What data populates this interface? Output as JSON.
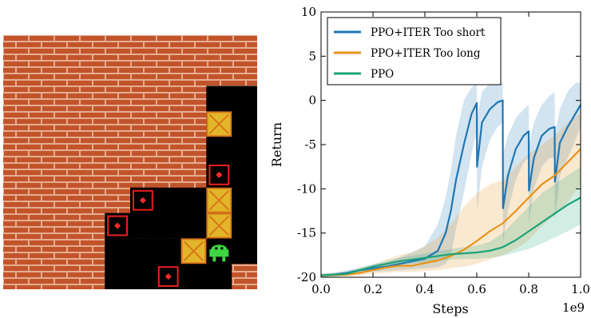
{
  "game": {
    "colors": {
      "wall_brick": "#c2542b",
      "mortar": "#e6ad90",
      "floor": "#000000",
      "box_fill": "#e2b62a",
      "box_edge": "#d9761a",
      "target_frame": "#e8201e",
      "target_dot": "#ff2a2a",
      "agent": "#3ed640"
    },
    "icons": [
      "box-icon",
      "target-icon",
      "agent-icon"
    ]
  },
  "chart_data": {
    "type": "line",
    "xlabel": "Steps",
    "ylabel": "Return",
    "xlim": [
      0.0,
      1.0
    ],
    "ylim": [
      -20,
      10
    ],
    "x_multiplier": "1e9",
    "xticks": [
      "0.0",
      "0.2",
      "0.4",
      "0.6",
      "0.8",
      "1.0"
    ],
    "yticks": [
      "-20",
      "-15",
      "-10",
      "-5",
      "0",
      "5",
      "10"
    ],
    "legend_position": "top-left",
    "grid": false,
    "series": [
      {
        "name": "PPO+ITER Too short",
        "color": "#1f77b4",
        "x": [
          0,
          0.05,
          0.1,
          0.15,
          0.2,
          0.25,
          0.3,
          0.35,
          0.4,
          0.45,
          0.48,
          0.5,
          0.52,
          0.55,
          0.58,
          0.6,
          0.601,
          0.62,
          0.65,
          0.68,
          0.7,
          0.701,
          0.72,
          0.75,
          0.78,
          0.8,
          0.801,
          0.82,
          0.85,
          0.88,
          0.9,
          0.901,
          0.92,
          0.95,
          0.98,
          1.0
        ],
        "y": [
          -19.8,
          -19.7,
          -19.5,
          -19.2,
          -19.0,
          -18.8,
          -18.5,
          -18.2,
          -17.9,
          -17.0,
          -15.0,
          -12.5,
          -9.0,
          -5.0,
          -1.5,
          -0.3,
          -7.5,
          -2.5,
          -1.0,
          -0.2,
          0.0,
          -12.2,
          -8.5,
          -5.5,
          -4.0,
          -3.5,
          -10.2,
          -6.5,
          -4.0,
          -3.2,
          -3.0,
          -9.2,
          -4.8,
          -3.0,
          -1.5,
          -0.5
        ],
        "band_upper": [
          -19.6,
          -19.5,
          -19.2,
          -18.9,
          -18.6,
          -18.3,
          -17.8,
          -17.2,
          -16.5,
          -14.0,
          -11.0,
          -8.0,
          -4.0,
          0.0,
          1.5,
          2.0,
          -2.0,
          1.0,
          2.0,
          2.0,
          2.0,
          -6.0,
          -4.0,
          -2.0,
          -1.0,
          -0.5,
          -5.0,
          -2.5,
          -0.5,
          0.5,
          1.0,
          -4.0,
          -1.0,
          1.0,
          2.0,
          2.0
        ],
        "band_lower": [
          -20.0,
          -19.9,
          -19.8,
          -19.5,
          -19.4,
          -19.3,
          -19.2,
          -19.1,
          -19.0,
          -18.9,
          -18.5,
          -17.5,
          -14.5,
          -10.5,
          -6.0,
          -3.5,
          -12.5,
          -7.5,
          -4.5,
          -3.0,
          -2.5,
          -16.0,
          -12.5,
          -9.0,
          -7.0,
          -6.5,
          -14.0,
          -10.0,
          -7.5,
          -6.5,
          -6.5,
          -13.5,
          -8.5,
          -6.5,
          -4.5,
          -3.0
        ]
      },
      {
        "name": "PPO+ITER Too long",
        "color": "#e8921a",
        "x": [
          0,
          0.1,
          0.15,
          0.2,
          0.25,
          0.3,
          0.35,
          0.4,
          0.45,
          0.5,
          0.55,
          0.6,
          0.65,
          0.7,
          0.75,
          0.8,
          0.85,
          0.9,
          0.95,
          1.0
        ],
        "y": [
          -19.8,
          -19.7,
          -19.5,
          -19.2,
          -18.9,
          -18.7,
          -18.7,
          -18.4,
          -18.1,
          -17.6,
          -16.9,
          -15.9,
          -14.8,
          -13.9,
          -12.5,
          -11.0,
          -9.5,
          -8.5,
          -7.0,
          -5.5
        ],
        "band_upper": [
          -19.6,
          -19.4,
          -19.0,
          -18.6,
          -18.0,
          -17.5,
          -17.2,
          -16.5,
          -15.5,
          -14.0,
          -12.0,
          -10.5,
          -9.5,
          -9.0,
          -7.5,
          -6.0,
          -5.0,
          -4.0,
          -2.5,
          -1.5
        ],
        "band_lower": [
          -20.0,
          -19.9,
          -19.8,
          -19.6,
          -19.5,
          -19.4,
          -19.4,
          -19.3,
          -19.2,
          -19.0,
          -18.8,
          -18.5,
          -18.0,
          -17.5,
          -16.8,
          -15.8,
          -14.2,
          -13.0,
          -11.5,
          -9.5
        ]
      },
      {
        "name": "PPO",
        "color": "#1aa37a",
        "x": [
          0,
          0.1,
          0.15,
          0.2,
          0.3,
          0.4,
          0.5,
          0.6,
          0.65,
          0.7,
          0.75,
          0.8,
          0.85,
          0.9,
          0.95,
          1.0
        ],
        "y": [
          -19.8,
          -19.6,
          -19.2,
          -18.8,
          -18.2,
          -17.8,
          -17.4,
          -17.2,
          -17.0,
          -16.6,
          -15.8,
          -14.8,
          -13.8,
          -12.8,
          -11.8,
          -11.0
        ],
        "band_upper": [
          -19.6,
          -19.4,
          -19.0,
          -18.5,
          -17.8,
          -17.3,
          -16.8,
          -16.4,
          -16.0,
          -15.0,
          -13.5,
          -12.0,
          -10.5,
          -9.5,
          -8.5,
          -7.5
        ],
        "band_lower": [
          -20.0,
          -19.8,
          -19.5,
          -19.1,
          -18.6,
          -18.3,
          -18.0,
          -17.9,
          -17.8,
          -17.6,
          -17.2,
          -16.8,
          -16.2,
          -15.5,
          -14.8,
          -14.0
        ]
      }
    ]
  }
}
